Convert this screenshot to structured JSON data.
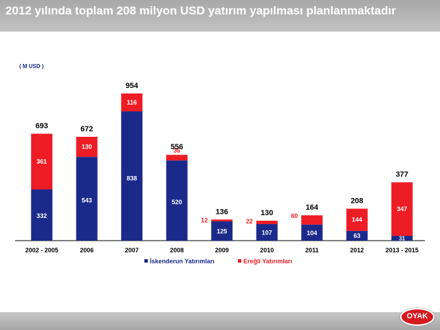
{
  "header": {
    "title": "2012 yılında toplam 208 milyon USD yatırım yapılması planlanmaktadır"
  },
  "logo": {
    "text": "OYAK"
  },
  "colors": {
    "primary": "#1b2a8a",
    "secondary": "#ee1c25",
    "total": "#000000"
  },
  "chart_data": {
    "type": "bar",
    "stacked": true,
    "unit_label": "( M USD )",
    "categories": [
      "2002 - 2005",
      "2006",
      "2007",
      "2008",
      "2009",
      "2010",
      "2011",
      "2012",
      "2013 - 2015"
    ],
    "series": [
      {
        "name": "İskenderun Yatırımları",
        "values": [
          332,
          543,
          838,
          520,
          125,
          107,
          104,
          63,
          31
        ]
      },
      {
        "name": "Ereğli Yatırımları",
        "values": [
          361,
          130,
          116,
          36,
          12,
          22,
          60,
          144,
          347
        ]
      }
    ],
    "totals": [
      693,
      672,
      954,
      556,
      136,
      130,
      164,
      208,
      377
    ],
    "ylim": [
      0,
      1000
    ],
    "legend_position": "bottom",
    "grid": false
  }
}
